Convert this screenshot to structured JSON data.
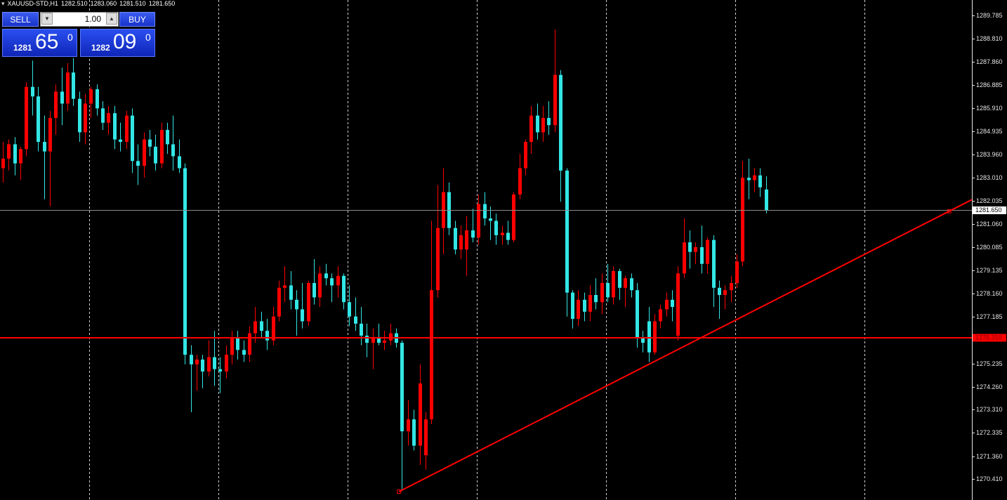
{
  "header": {
    "symbol": "XAUUSD-STD,H1",
    "values": [
      "1282.510",
      "1283.060",
      "1281.510",
      "1281.650"
    ]
  },
  "trade_panel": {
    "sell": "SELL",
    "buy": "BUY",
    "lot": "1.00",
    "bid": {
      "prefix": "1281",
      "pips": "65",
      "point": "0"
    },
    "ask": {
      "prefix": "1282",
      "pips": "09",
      "point": "0"
    }
  },
  "chart_data": {
    "type": "candlestick",
    "open": [
      1283.4,
      1283.8,
      1284.4,
      1283.6,
      1284.2,
      1286.8,
      1286.4,
      1284.5,
      1284.1,
      1285.5,
      1286.6,
      1286.1,
      1287.4,
      1286.3,
      1284.9,
      1286.1,
      1286.7,
      1285.9,
      1285.3,
      1285.7,
      1284.6,
      1284.5,
      1285.6,
      1283.7,
      1283.5,
      1284.6,
      1284.3,
      1283.6,
      1285.0,
      1284.4,
      1283.9,
      1283.4,
      1275.6,
      1275.2,
      1275.4,
      1274.9,
      1275.5,
      1275.0,
      1274.9,
      1275.6,
      1276.3,
      1275.8,
      1275.6,
      1276.5,
      1277.0,
      1276.6,
      1276.2,
      1277.2,
      1278.4,
      1278.5,
      1277.9,
      1277.5,
      1277.0,
      1278.6,
      1278.0,
      1279.0,
      1278.8,
      1278.5,
      1278.9,
      1277.8,
      1277.2,
      1276.9,
      1276.4,
      1276.1,
      1276.3,
      1276.1,
      1276.2,
      1276.5,
      1276.1,
      1272.4,
      1272.9,
      1271.8,
      1271.4,
      1272.9,
      1278.3,
      1280.9,
      1282.4,
      1280.9,
      1280.0,
      1280.0,
      1280.8,
      1280.5,
      1281.9,
      1281.3,
      1281.2,
      1280.6,
      1280.7,
      1280.4,
      1282.3,
      1283.4,
      1284.5,
      1285.6,
      1284.9,
      1285.5,
      1285.2,
      1287.3,
      1283.3,
      1278.2,
      1277.1,
      1277.9,
      1277.4,
      1278.1,
      1277.8,
      1278.6,
      1278.0,
      1279.1,
      1278.4,
      1278.8,
      1278.3,
      1276.3,
      1277.0,
      1275.7,
      1277.0,
      1277.5,
      1277.9,
      1276.4,
      1279.0,
      1280.3,
      1279.9,
      1280.1,
      1279.4,
      1280.4,
      1278.4,
      1278.1,
      1278.3,
      1278.6,
      1279.5,
      1283.0,
      1282.9,
      1283.1,
      1282.51
    ],
    "high": [
      1284.5,
      1284.6,
      1284.7,
      1284.3,
      1287.0,
      1287.9,
      1286.8,
      1285.6,
      1285.8,
      1286.9,
      1287.6,
      1287.8,
      1288.0,
      1286.6,
      1286.5,
      1286.8,
      1286.9,
      1286.2,
      1286.0,
      1286.0,
      1285.3,
      1285.8,
      1285.9,
      1284.4,
      1284.9,
      1285.0,
      1284.8,
      1285.3,
      1285.3,
      1285.6,
      1284.6,
      1283.6,
      1276.0,
      1275.6,
      1275.6,
      1276.2,
      1276.6,
      1275.5,
      1276.0,
      1276.6,
      1276.6,
      1276.2,
      1276.8,
      1277.6,
      1277.4,
      1277.1,
      1277.6,
      1278.7,
      1279.3,
      1279.1,
      1278.3,
      1278.6,
      1278.7,
      1279.6,
      1279.3,
      1279.4,
      1279.0,
      1279.3,
      1279.0,
      1278.5,
      1278.0,
      1277.6,
      1276.9,
      1276.7,
      1276.9,
      1276.6,
      1276.9,
      1276.7,
      1276.2,
      1273.7,
      1273.3,
      1275.2,
      1273.2,
      1281.2,
      1282.7,
      1283.4,
      1282.8,
      1281.2,
      1281.0,
      1281.4,
      1281.7,
      1282.3,
      1282.4,
      1281.8,
      1281.5,
      1281.0,
      1281.2,
      1282.4,
      1284.0,
      1284.6,
      1286.0,
      1286.1,
      1286.0,
      1286.2,
      1289.2,
      1287.5,
      1283.4,
      1278.3,
      1278.3,
      1278.2,
      1278.5,
      1278.8,
      1279.0,
      1279.4,
      1279.3,
      1279.2,
      1278.9,
      1279.0,
      1278.6,
      1276.6,
      1277.6,
      1277.3,
      1277.7,
      1278.2,
      1278.3,
      1279.3,
      1281.3,
      1280.8,
      1280.3,
      1281.0,
      1280.5,
      1280.6,
      1278.7,
      1278.5,
      1278.9,
      1279.8,
      1283.7,
      1283.8,
      1283.4,
      1283.4,
      1283.06
    ],
    "low": [
      1282.8,
      1283.3,
      1283.1,
      1282.9,
      1283.9,
      1285.6,
      1284.1,
      1282.1,
      1281.8,
      1284.8,
      1285.2,
      1285.8,
      1286.0,
      1284.5,
      1284.4,
      1285.5,
      1285.6,
      1285.0,
      1284.8,
      1284.2,
      1284.1,
      1284.2,
      1283.2,
      1282.7,
      1283.0,
      1283.9,
      1283.3,
      1283.4,
      1284.0,
      1283.3,
      1283.2,
      1275.2,
      1273.2,
      1274.1,
      1274.2,
      1274.7,
      1274.3,
      1274.0,
      1274.6,
      1275.2,
      1275.4,
      1275.3,
      1275.3,
      1276.1,
      1276.3,
      1275.8,
      1276.0,
      1277.0,
      1277.8,
      1277.5,
      1276.4,
      1276.7,
      1276.8,
      1277.7,
      1277.6,
      1278.5,
      1277.8,
      1278.0,
      1277.5,
      1276.8,
      1276.6,
      1276.0,
      1275.5,
      1275.0,
      1276.0,
      1275.8,
      1276.0,
      1275.9,
      1269.9,
      1271.8,
      1271.6,
      1271.0,
      1270.8,
      1272.7,
      1278.0,
      1279.8,
      1280.6,
      1279.8,
      1279.6,
      1278.9,
      1280.3,
      1280.2,
      1281.0,
      1280.4,
      1280.2,
      1280.2,
      1280.2,
      1280.3,
      1282.1,
      1283.1,
      1284.0,
      1284.6,
      1284.5,
      1284.8,
      1284.9,
      1282.0,
      1277.2,
      1276.7,
      1276.8,
      1277.0,
      1277.0,
      1277.5,
      1277.3,
      1277.8,
      1277.7,
      1277.9,
      1277.6,
      1278.0,
      1275.9,
      1275.7,
      1275.3,
      1275.6,
      1276.7,
      1277.2,
      1277.0,
      1276.2,
      1278.8,
      1279.2,
      1279.4,
      1279.0,
      1279.0,
      1277.6,
      1277.1,
      1277.5,
      1277.8,
      1278.4,
      1279.3,
      1282.1,
      1282.4,
      1282.2,
      1281.51
    ],
    "close": [
      1283.8,
      1284.4,
      1283.6,
      1284.2,
      1286.8,
      1286.4,
      1284.5,
      1284.1,
      1285.5,
      1286.6,
      1286.1,
      1287.4,
      1286.3,
      1284.9,
      1286.1,
      1286.7,
      1285.9,
      1285.3,
      1285.7,
      1284.6,
      1284.5,
      1285.6,
      1283.7,
      1283.5,
      1284.6,
      1284.3,
      1283.6,
      1285.0,
      1284.4,
      1283.9,
      1283.4,
      1275.6,
      1275.2,
      1275.4,
      1274.9,
      1275.5,
      1275.0,
      1274.9,
      1275.6,
      1276.3,
      1275.8,
      1275.6,
      1276.5,
      1277.0,
      1276.6,
      1276.2,
      1277.2,
      1278.4,
      1278.5,
      1277.9,
      1277.5,
      1277.0,
      1278.6,
      1278.0,
      1279.0,
      1278.8,
      1278.5,
      1278.9,
      1277.8,
      1277.2,
      1276.9,
      1276.4,
      1276.1,
      1276.3,
      1276.1,
      1276.2,
      1276.5,
      1276.1,
      1272.4,
      1272.9,
      1271.8,
      1274.4,
      1272.9,
      1278.3,
      1280.9,
      1282.4,
      1280.9,
      1280.0,
      1280.6,
      1280.8,
      1280.5,
      1281.9,
      1281.3,
      1281.2,
      1280.6,
      1280.7,
      1280.4,
      1282.3,
      1283.4,
      1284.5,
      1285.6,
      1284.9,
      1285.5,
      1285.2,
      1287.3,
      1283.3,
      1278.2,
      1277.1,
      1277.9,
      1277.4,
      1278.1,
      1277.8,
      1278.6,
      1278.0,
      1279.1,
      1278.4,
      1278.8,
      1278.3,
      1276.3,
      1276.1,
      1275.7,
      1277.0,
      1277.5,
      1277.9,
      1277.6,
      1279.0,
      1280.3,
      1279.9,
      1280.1,
      1279.4,
      1280.4,
      1278.4,
      1278.1,
      1278.3,
      1278.6,
      1279.5,
      1283.0,
      1282.9,
      1283.1,
      1282.6,
      1281.65
    ],
    "up_color": "#ff0000",
    "down_color": "#33e6e6",
    "ylim": [
      1269.529,
      1290.431
    ],
    "yticks": [
      1289.785,
      {
        "value": 1288.81,
        "label": "1288.810"
      },
      {
        "value": 1287.86,
        "label": "1287.860"
      },
      1286.885,
      {
        "value": 1285.91,
        "label": "1285.910"
      },
      1284.935,
      {
        "value": 1283.96,
        "label": "1283.960"
      },
      {
        "value": 1283.01,
        "label": "1283.010"
      },
      1282.035,
      {
        "value": 1281.06,
        "label": "1281.060"
      },
      1280.085,
      1279.135,
      {
        "value": 1278.16,
        "label": "1278.160"
      },
      1277.185,
      1275.235,
      {
        "value": 1274.26,
        "label": "1274.260"
      },
      {
        "value": 1273.31,
        "label": "1273.310"
      },
      1272.335,
      {
        "value": 1271.36,
        "label": "1271.360"
      },
      {
        "value": 1270.41,
        "label": "1270.410"
      }
    ],
    "hline": {
      "value": 1276.31,
      "label": "1276.310",
      "color": "#ff0000"
    },
    "price_line": {
      "value": 1281.65,
      "label": "1281.650",
      "color": "#8c8c8c"
    },
    "trendline": {
      "x": [
        67.5,
        161.2
      ],
      "y": [
        1269.88,
        1281.6
      ],
      "color": "#ff0000"
    }
  }
}
